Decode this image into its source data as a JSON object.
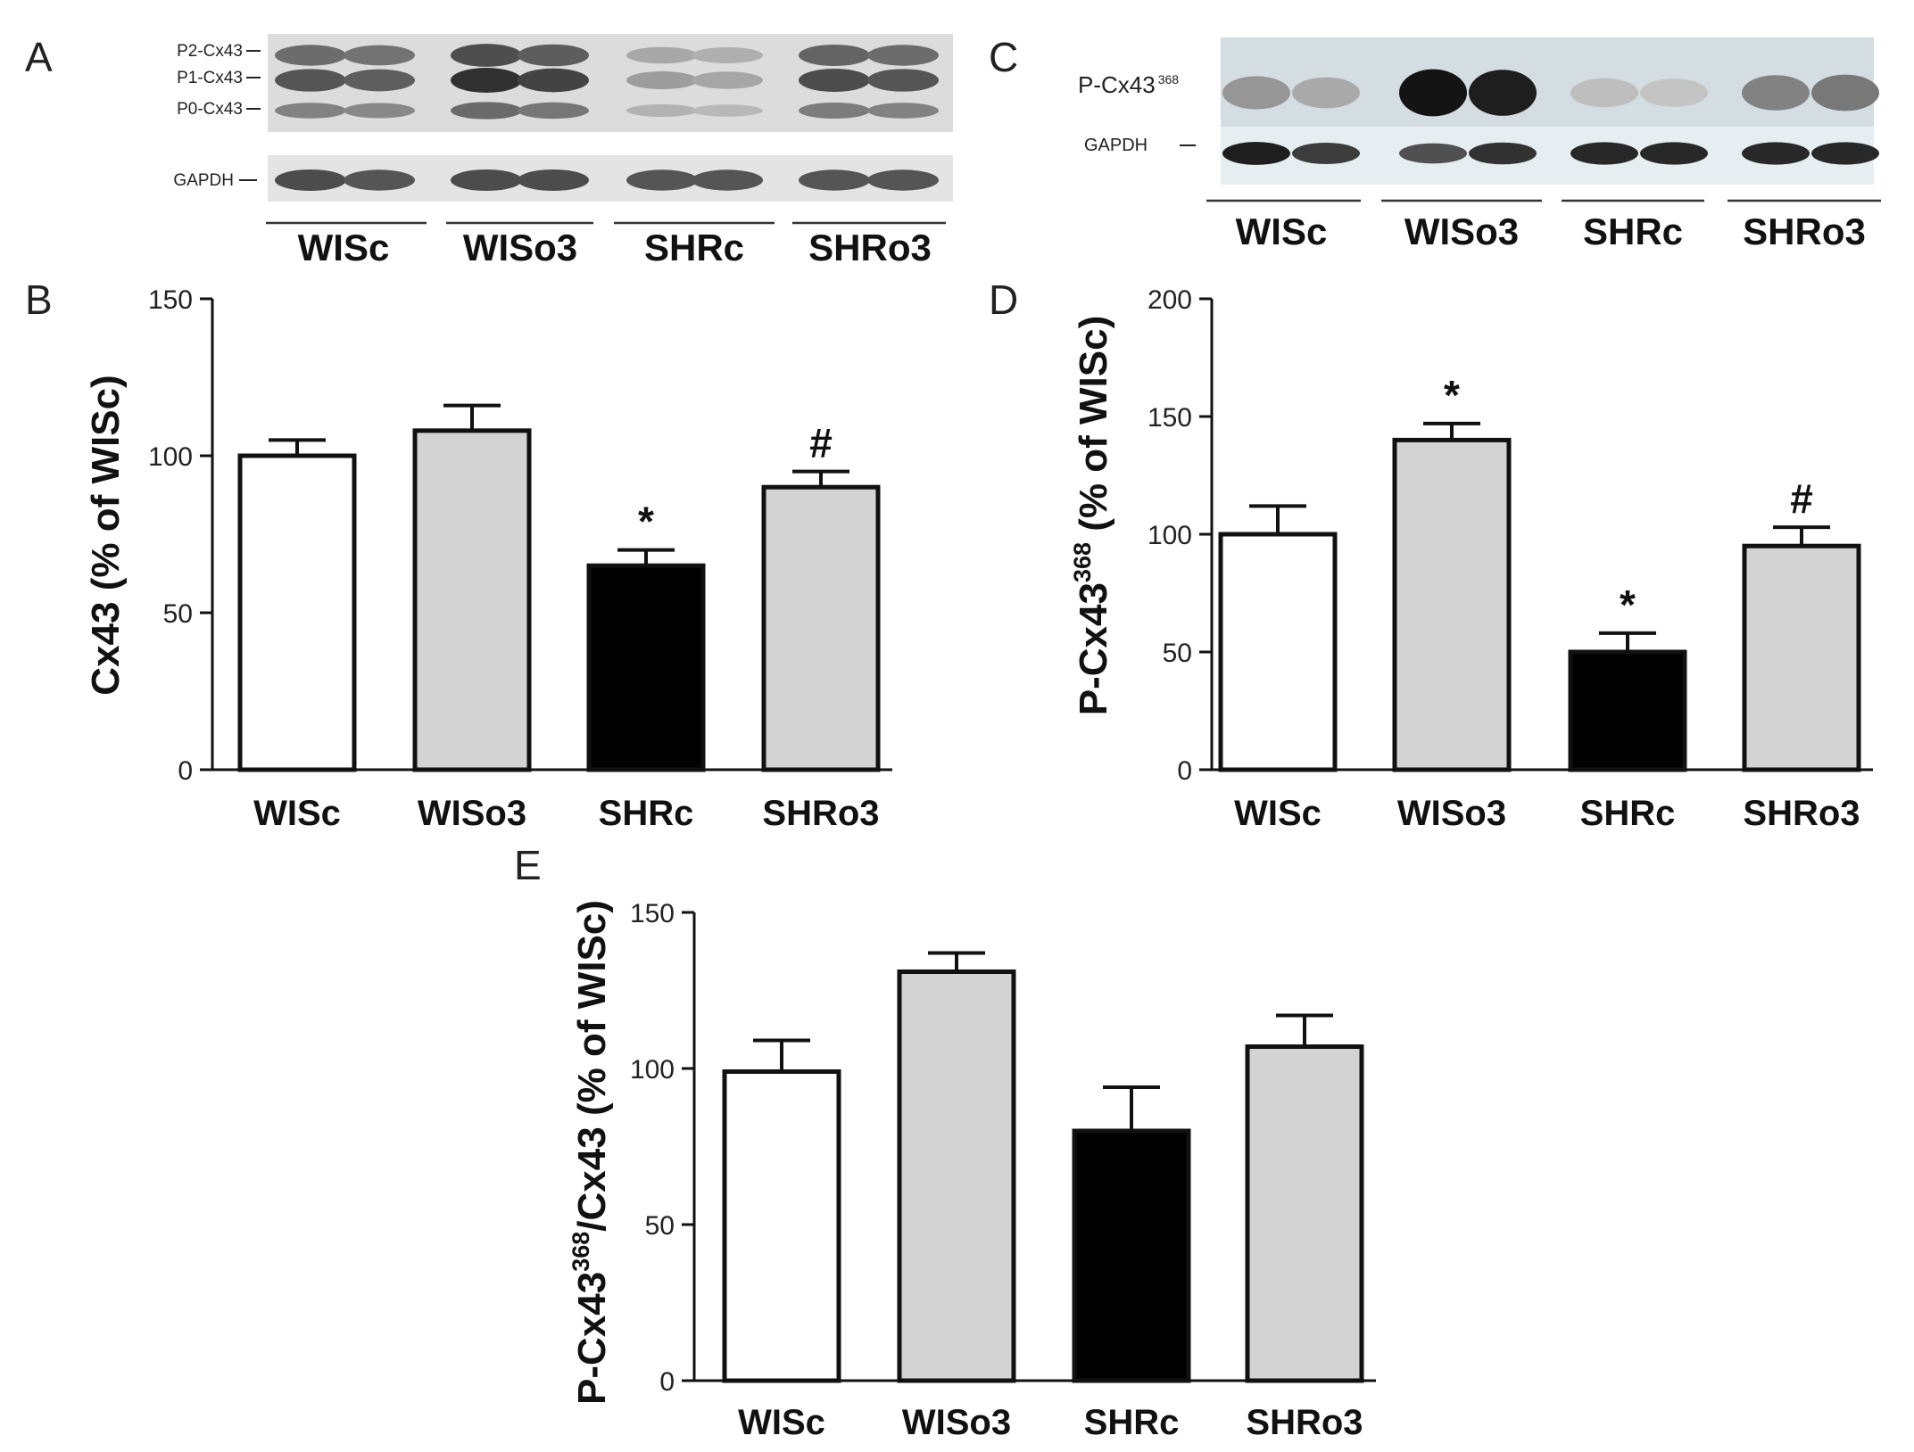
{
  "figure": {
    "panel_labels": [
      "A",
      "B",
      "C",
      "D",
      "E"
    ],
    "groups": [
      "WISc",
      "WISo3",
      "SHRc",
      "SHRo3"
    ],
    "bar_colors": [
      "#ffffff",
      "#d3d3d3",
      "#000000",
      "#d3d3d3"
    ],
    "significance_symbols": {
      "vs_WISc": "*",
      "vs_SHRc": "#"
    }
  },
  "blot_a": {
    "band_labels": [
      "P2-Cx43",
      "P1-Cx43",
      "P0-Cx43"
    ],
    "loading_label": "GAPDH",
    "group_labels": [
      "WISc",
      "WISo3",
      "SHRc",
      "SHRo3"
    ],
    "lane_intensity_cx43": [
      0.75,
      0.7,
      0.95,
      0.85,
      0.35,
      0.3,
      0.8,
      0.75
    ],
    "lane_intensity_gapdh": [
      0.8,
      0.75,
      0.8,
      0.8,
      0.75,
      0.75,
      0.75,
      0.75
    ]
  },
  "blot_c": {
    "band_label": "P-Cx43",
    "band_label_sup": "368",
    "loading_label": "GAPDH",
    "group_labels": [
      "WISc",
      "WISo3",
      "SHRc",
      "SHRo3"
    ],
    "lane_intensity_pcx43": [
      0.35,
      0.25,
      1.0,
      0.95,
      0.15,
      0.12,
      0.45,
      0.5
    ],
    "lane_intensity_gapdh": [
      0.95,
      0.8,
      0.7,
      0.85,
      0.9,
      0.9,
      0.9,
      0.9
    ]
  },
  "chart_data": [
    {
      "panel": "B",
      "type": "bar",
      "ylabel": "Cx43 (% of WISc)",
      "categories": [
        "WISc",
        "WISo3",
        "SHRc",
        "SHRo3"
      ],
      "values": [
        100,
        108,
        65,
        90
      ],
      "errors": [
        5,
        8,
        5,
        5
      ],
      "annotations": [
        "",
        "",
        "*",
        "#"
      ],
      "ylim": [
        0,
        150
      ],
      "yticks": [
        0,
        50,
        100,
        150
      ]
    },
    {
      "panel": "D",
      "type": "bar",
      "ylabel": "P-Cx43",
      "ylabel_sup": "368",
      "ylabel_suffix": " (% of WISc)",
      "categories": [
        "WISc",
        "WISo3",
        "SHRc",
        "SHRo3"
      ],
      "values": [
        100,
        140,
        50,
        95
      ],
      "errors": [
        12,
        7,
        8,
        8
      ],
      "annotations": [
        "",
        "*",
        "*",
        "#"
      ],
      "ylim": [
        0,
        200
      ],
      "yticks": [
        0,
        50,
        100,
        150,
        200
      ]
    },
    {
      "panel": "E",
      "type": "bar",
      "ylabel": "P-Cx43",
      "ylabel_sup": "368",
      "ylabel_suffix": "/Cx43 (% of WISc)",
      "categories": [
        "WISc",
        "WISo3",
        "SHRc",
        "SHRo3"
      ],
      "values": [
        99,
        131,
        80,
        107
      ],
      "errors": [
        10,
        6,
        14,
        10
      ],
      "annotations": [
        "",
        "",
        "",
        ""
      ],
      "ylim": [
        0,
        150
      ],
      "yticks": [
        0,
        50,
        100,
        150
      ]
    }
  ]
}
